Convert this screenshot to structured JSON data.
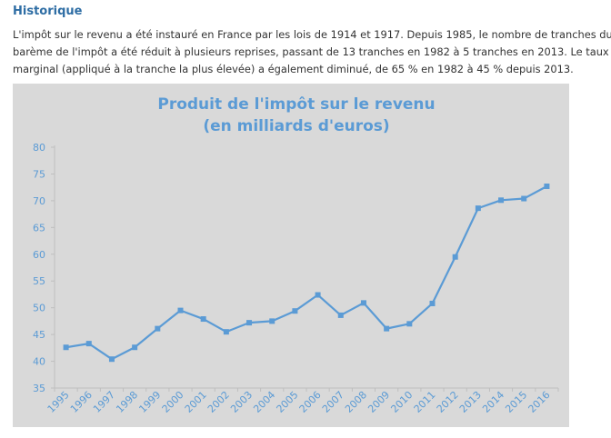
{
  "section": {
    "heading": "Historique",
    "paragraph_lines": [
      "L'impôt sur le revenu a été instauré en France par les lois de 1914 et 1917. Depuis 1985, le nombre de tranches du",
      "barème de l'impôt a été réduit à plusieurs reprises, passant de 13 tranches en 1982 à 5 tranches en 2013. Le taux",
      "marginal (appliqué à la tranche la plus élevée) a également diminué, de 65 % en 1982 à 45 % depuis 2013."
    ]
  },
  "chart_data": {
    "type": "line",
    "title": [
      "Produit de l'impôt sur le revenu",
      "(en milliards d'euros)"
    ],
    "xlabel": "",
    "ylabel": "",
    "categories": [
      "1995",
      "1996",
      "1997",
      "1998",
      "1999",
      "2000",
      "2001",
      "2002",
      "2003",
      "2004",
      "2005",
      "2006",
      "2007",
      "2008",
      "2009",
      "2010",
      "2011",
      "2012",
      "2013",
      "2014",
      "2015",
      "2016"
    ],
    "series": [
      {
        "values": [
          42.6,
          43.3,
          40.4,
          42.6,
          46.1,
          49.5,
          47.9,
          45.5,
          47.2,
          47.5,
          49.4,
          52.4,
          48.6,
          50.9,
          46.1,
          47.0,
          50.8,
          59.5,
          68.6,
          70.1,
          70.4,
          72.7
        ]
      }
    ],
    "yticks": [
      35,
      40,
      45,
      50,
      55,
      60,
      65,
      70,
      75,
      80
    ],
    "ylim": [
      35,
      80
    ],
    "grid": false,
    "legend": "none",
    "colors": {
      "line": "#5b9bd5",
      "text": "#5b9bd5",
      "background": "#d9d9d9",
      "axis": "#bfbfbf"
    }
  }
}
